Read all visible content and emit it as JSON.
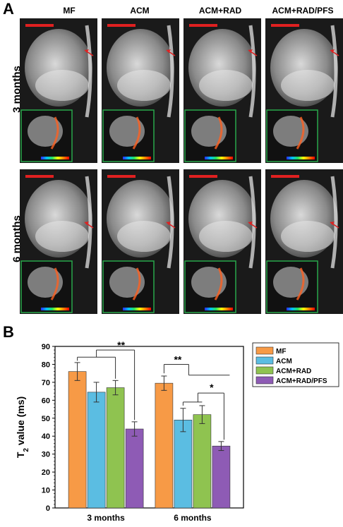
{
  "panel_a": {
    "letter": "A",
    "columns": [
      "MF",
      "ACM",
      "ACM+RAD",
      "ACM+RAD/PFS"
    ],
    "rows": [
      "3 months",
      "6 months"
    ]
  },
  "panel_b": {
    "letter": "B"
  },
  "colors": {
    "MF": "#f79a46",
    "ACM": "#5bbde2",
    "ACM+RAD": "#8fc350",
    "ACM+RAD/PFS": "#8e5bb5",
    "scale_bar": "#e02020",
    "arrow": "#e02020",
    "inset_border": "#29a84a"
  },
  "chart_data": {
    "type": "bar",
    "categories": [
      "3 months",
      "6 months"
    ],
    "ylabel": "T2 value (ms)",
    "ylim": [
      0,
      90
    ],
    "yticks": [
      0,
      10,
      20,
      30,
      40,
      50,
      60,
      70,
      80,
      90
    ],
    "legend_position": "top-right",
    "series": [
      {
        "name": "MF",
        "values": [
          76,
          69.5
        ],
        "errors": [
          5,
          4
        ]
      },
      {
        "name": "ACM",
        "values": [
          64.5,
          49
        ],
        "errors": [
          5.5,
          6.5
        ]
      },
      {
        "name": "ACM+RAD",
        "values": [
          67,
          52
        ],
        "errors": [
          4,
          5
        ]
      },
      {
        "name": "ACM+RAD/PFS",
        "values": [
          44,
          34.5
        ],
        "errors": [
          4,
          2.5
        ]
      }
    ],
    "significance": [
      {
        "category": "3 months",
        "label": "**"
      },
      {
        "category": "6 months",
        "label": "**"
      },
      {
        "category": "6 months",
        "label": "*"
      }
    ]
  }
}
